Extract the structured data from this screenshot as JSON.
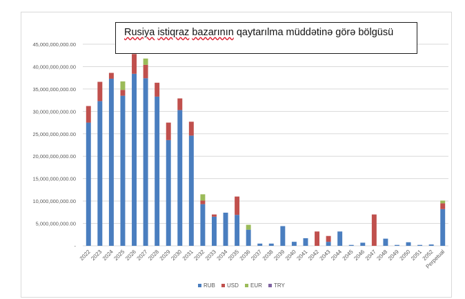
{
  "chart_data": {
    "type": "bar",
    "stacked": true,
    "title_parts": [
      "Rusiya",
      " ",
      "istiqraz",
      " ",
      "bazarının",
      " qaytarılma müddətinə görə bölgüsü"
    ],
    "title": "Rusiya istiqraz bazarının qaytarılma müddətinə görə bölgüsü",
    "xlabel": "",
    "ylabel": "",
    "ylim": [
      0,
      45000000000
    ],
    "yticks": [
      0,
      5000000000,
      10000000000,
      15000000000,
      20000000000,
      25000000000,
      30000000000,
      35000000000,
      40000000000,
      45000000000
    ],
    "ytick_labels": [
      "-",
      "5,000,000,000.00",
      "10,000,000,000.00",
      "15,000,000,000.00",
      "20,000,000,000.00",
      "25,000,000,000.00",
      "30,000,000,000.00",
      "35,000,000,000.00",
      "40,000,000,000.00",
      "45,000,000,000.00"
    ],
    "grid": true,
    "legend_position": "bottom",
    "categories": [
      "2022",
      "2023",
      "2024",
      "2025",
      "2026",
      "2027",
      "2028",
      "2029",
      "2030",
      "2031",
      "2032",
      "2033",
      "2034",
      "2035",
      "2036",
      "2037",
      "2038",
      "2039",
      "2040",
      "2041",
      "2042",
      "2043",
      "2044",
      "2045",
      "2046",
      "2047",
      "2048",
      "2049",
      "2050",
      "2051",
      "2052",
      "Perpetual"
    ],
    "series": [
      {
        "name": "RUB",
        "color": "#4a7ebf",
        "values": [
          27500000000,
          32300000000,
          37300000000,
          33500000000,
          38400000000,
          37400000000,
          33300000000,
          23600000000,
          30300000000,
          24600000000,
          9300000000,
          6500000000,
          7400000000,
          6900000000,
          3600000000,
          500000000,
          500000000,
          4400000000,
          900000000,
          1700000000,
          0,
          900000000,
          3200000000,
          200000000,
          700000000,
          0,
          1600000000,
          200000000,
          800000000,
          200000000,
          300000000,
          8200000000
        ]
      },
      {
        "name": "USD",
        "color": "#c0504d",
        "values": [
          3700000000,
          4300000000,
          1300000000,
          1300000000,
          4400000000,
          3000000000,
          3100000000,
          3900000000,
          2600000000,
          3100000000,
          800000000,
          500000000,
          0,
          4100000000,
          0,
          0,
          0,
          0,
          0,
          0,
          3200000000,
          1300000000,
          0,
          0,
          0,
          7000000000,
          0,
          0,
          0,
          0,
          0,
          1300000000
        ]
      },
      {
        "name": "EUR",
        "color": "#9bbb59",
        "values": [
          0,
          0,
          0,
          1900000000,
          0,
          1400000000,
          0,
          0,
          0,
          0,
          1400000000,
          0,
          0,
          0,
          1100000000,
          0,
          0,
          0,
          0,
          0,
          0,
          0,
          0,
          0,
          0,
          0,
          0,
          0,
          0,
          0,
          0,
          600000000
        ]
      },
      {
        "name": "TRY",
        "color": "#8064a2",
        "values": [
          0,
          0,
          0,
          0,
          0,
          0,
          0,
          0,
          0,
          0,
          0,
          0,
          0,
          0,
          0,
          0,
          0,
          0,
          0,
          0,
          0,
          0,
          0,
          0,
          0,
          0,
          0,
          0,
          0,
          0,
          0,
          0
        ]
      }
    ]
  }
}
